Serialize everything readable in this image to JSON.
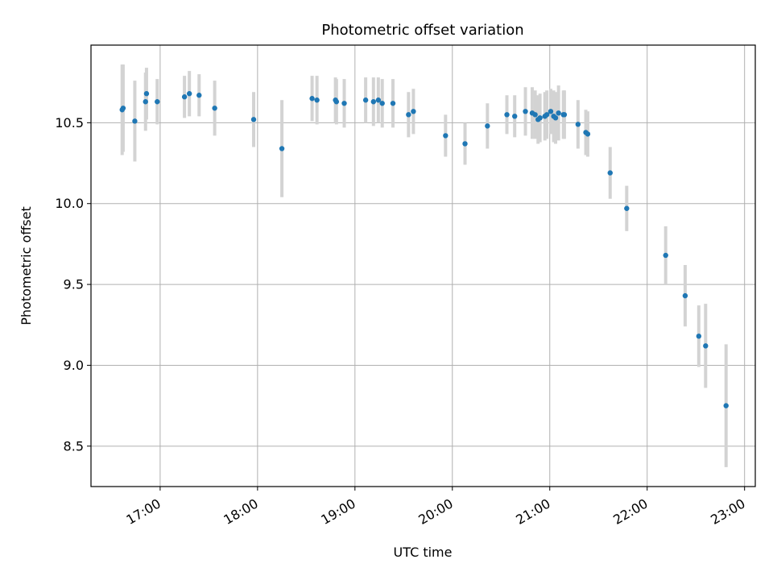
{
  "chart_data": {
    "type": "scatter",
    "title": "Photometric offset variation",
    "xlabel": "UTC time",
    "ylabel": "Photometric offset",
    "xlim": [
      16.29,
      23.11
    ],
    "ylim": [
      8.25,
      10.98
    ],
    "grid": true,
    "x_ticks": [
      {
        "value": 17,
        "label": "17:00"
      },
      {
        "value": 18,
        "label": "18:00"
      },
      {
        "value": 19,
        "label": "19:00"
      },
      {
        "value": 20,
        "label": "20:00"
      },
      {
        "value": 21,
        "label": "21:00"
      },
      {
        "value": 22,
        "label": "22:00"
      },
      {
        "value": 23,
        "label": "23:00"
      }
    ],
    "y_ticks": [
      {
        "value": 8.5,
        "label": "8.5"
      },
      {
        "value": 9.0,
        "label": "9.0"
      },
      {
        "value": 9.5,
        "label": "9.5"
      },
      {
        "value": 10.0,
        "label": "10.0"
      },
      {
        "value": 10.5,
        "label": "10.5"
      }
    ],
    "colors": {
      "point": "#1f77b4",
      "errorbar": "#d3d3d3",
      "grid": "#b0b0b0",
      "axes": "#000000"
    },
    "series": [
      {
        "name": "Photometric offset",
        "x": [
          16.61,
          16.62,
          16.74,
          16.85,
          16.86,
          16.97,
          17.25,
          17.3,
          17.4,
          17.56,
          17.96,
          18.25,
          18.56,
          18.61,
          18.8,
          18.81,
          18.89,
          19.11,
          19.19,
          19.24,
          19.28,
          19.39,
          19.55,
          19.6,
          19.93,
          20.13,
          20.36,
          20.56,
          20.64,
          20.75,
          20.82,
          20.85,
          20.88,
          20.9,
          20.95,
          20.97,
          21.01,
          21.04,
          21.06,
          21.09,
          21.14,
          21.15,
          21.29,
          21.37,
          21.39,
          21.62,
          21.79,
          22.19,
          22.39,
          22.53,
          22.6,
          22.81
        ],
        "y": [
          10.58,
          10.59,
          10.51,
          10.63,
          10.68,
          10.63,
          10.66,
          10.68,
          10.67,
          10.59,
          10.52,
          10.34,
          10.65,
          10.64,
          10.64,
          10.63,
          10.62,
          10.64,
          10.63,
          10.64,
          10.62,
          10.62,
          10.55,
          10.57,
          10.42,
          10.37,
          10.48,
          10.55,
          10.54,
          10.57,
          10.56,
          10.55,
          10.52,
          10.53,
          10.54,
          10.55,
          10.57,
          10.54,
          10.53,
          10.56,
          10.55,
          10.55,
          10.49,
          10.44,
          10.43,
          10.19,
          9.97,
          9.68,
          9.43,
          9.18,
          9.12,
          8.75
        ],
        "yerr": [
          0.28,
          0.27,
          0.25,
          0.18,
          0.16,
          0.14,
          0.13,
          0.14,
          0.13,
          0.17,
          0.17,
          0.3,
          0.14,
          0.15,
          0.14,
          0.14,
          0.15,
          0.14,
          0.15,
          0.14,
          0.15,
          0.15,
          0.14,
          0.14,
          0.13,
          0.13,
          0.14,
          0.12,
          0.13,
          0.15,
          0.16,
          0.15,
          0.15,
          0.15,
          0.15,
          0.15,
          0.14,
          0.16,
          0.16,
          0.17,
          0.15,
          0.15,
          0.15,
          0.14,
          0.14,
          0.16,
          0.14,
          0.18,
          0.19,
          0.19,
          0.26,
          0.38
        ]
      }
    ]
  }
}
